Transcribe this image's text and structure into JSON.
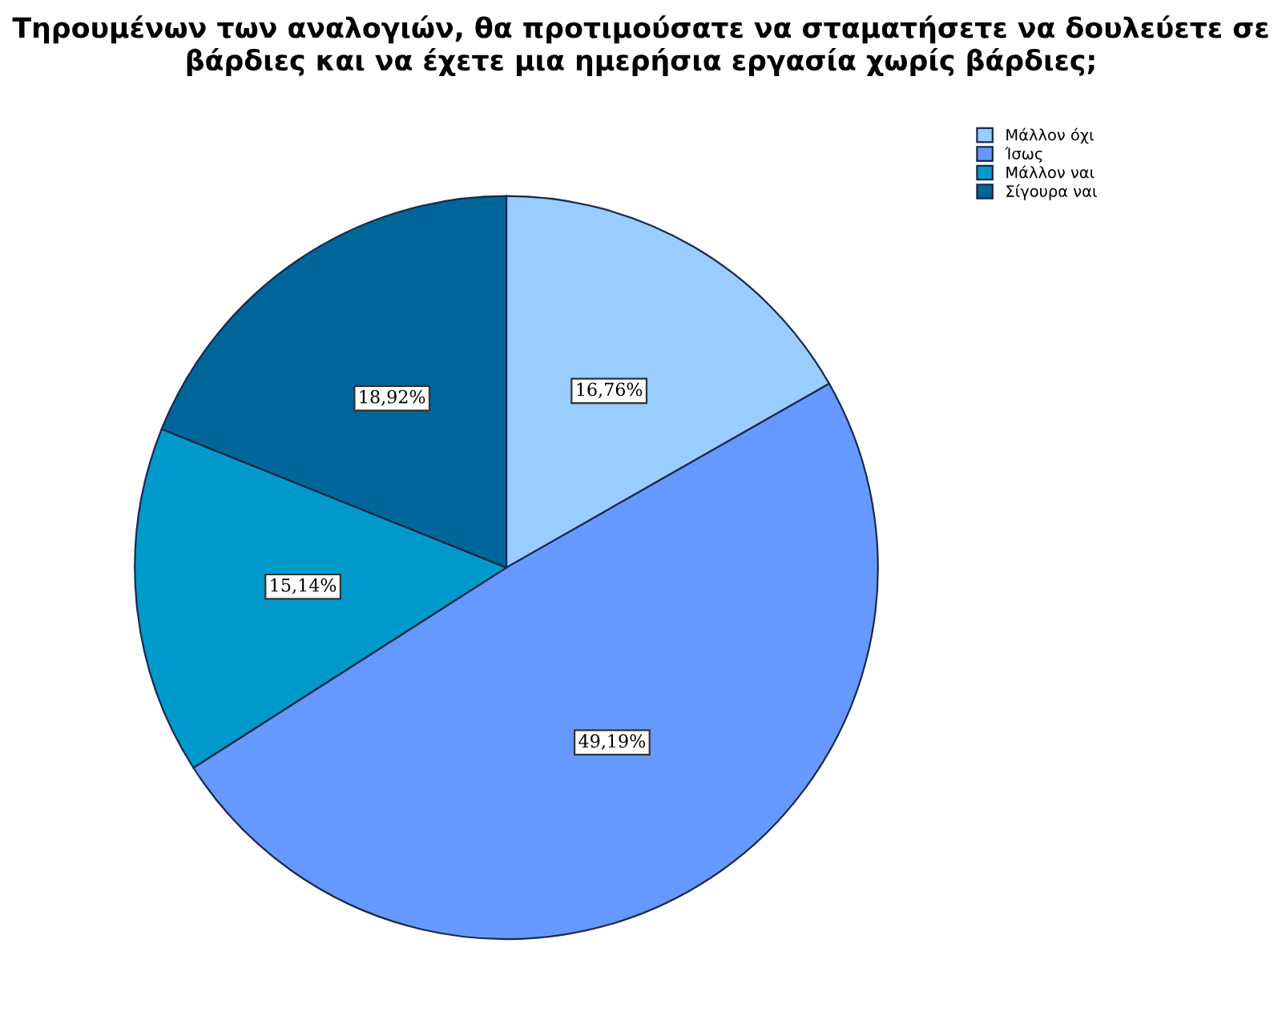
{
  "chart_data": {
    "type": "pie",
    "title": "Τηρουμένων των αναλογιών, θα προτιμούσατε να σταματήσετε να δουλεύετε σε βάρδιες και να έχετε μια ημερήσια εργασία χωρίς βάρδιες;",
    "categories": [
      "Μάλλον όχι",
      "Ίσως",
      "Μάλλον ναι",
      "Σίγουρα ναι"
    ],
    "values": [
      16.76,
      49.19,
      15.14,
      18.92
    ],
    "value_labels": [
      "16,76%",
      "49,19%",
      "15,14%",
      "18,92%"
    ],
    "colors": [
      "#99ccff",
      "#6699ff",
      "#0099cc",
      "#006699"
    ],
    "legend": "top right"
  }
}
